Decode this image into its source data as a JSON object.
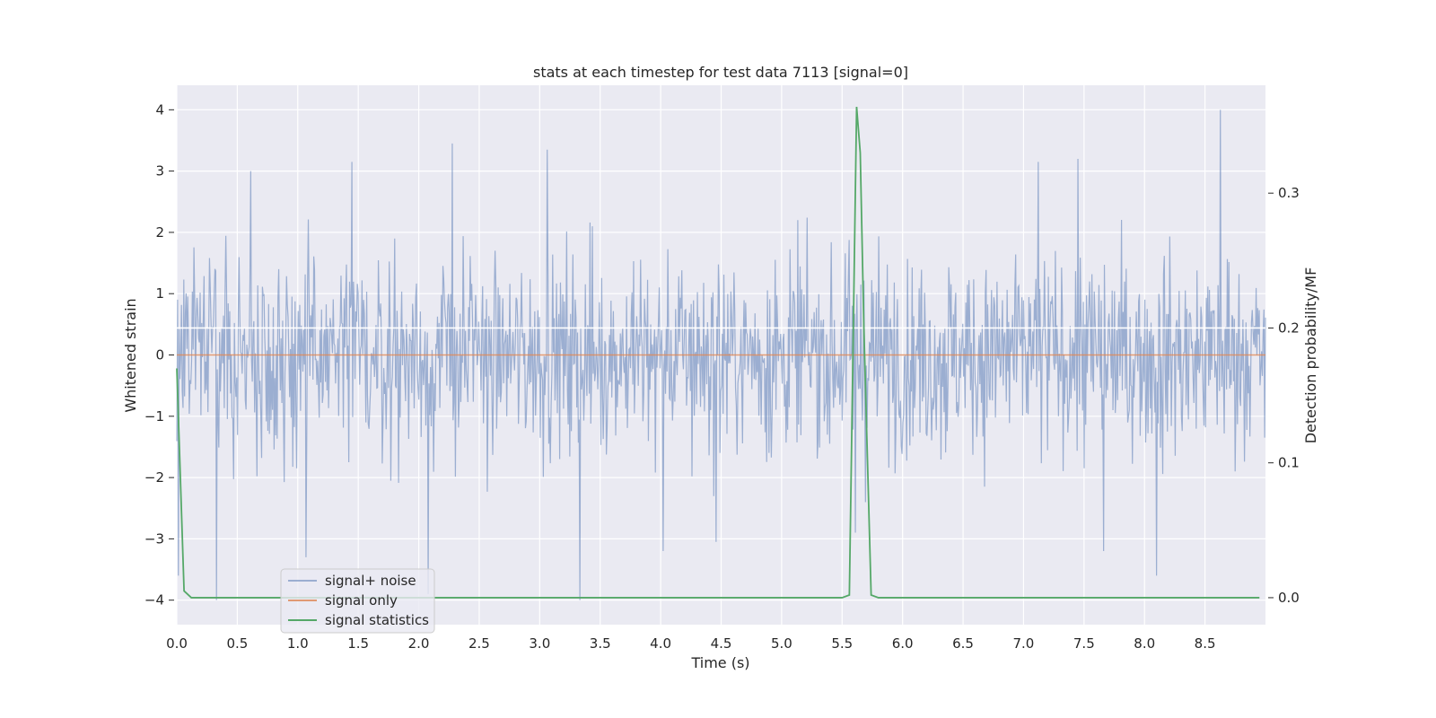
{
  "chart_data": {
    "type": "line",
    "title": "stats at each timestep for test data 7113 [signal=0]",
    "xlabel": "Time (s)",
    "ylabel": "Whitened strain",
    "ylabel_right": "Detection probability/MF",
    "xlim": [
      0.0,
      9.0
    ],
    "ylim": [
      -4.4,
      4.4
    ],
    "ylim_right": [
      -0.02,
      0.38
    ],
    "x_ticks": [
      "0.0",
      "0.5",
      "1.0",
      "1.5",
      "2.0",
      "2.5",
      "3.0",
      "3.5",
      "4.0",
      "4.5",
      "5.0",
      "5.5",
      "6.0",
      "6.5",
      "7.0",
      "7.5",
      "8.0",
      "8.5"
    ],
    "y_ticks": [
      "4",
      "3",
      "2",
      "1",
      "0",
      "−1",
      "−2",
      "−3",
      "−4"
    ],
    "y_ticks_right": [
      "0.3",
      "0.2",
      "0.1",
      "0.0"
    ],
    "grid": true,
    "legend_position": "lower-left",
    "series": [
      {
        "name": "signal+ noise",
        "axis": "left",
        "color": "#4c72b0",
        "style": "dense noise, amplitude mostly within ±2.5 with spikes reaching about ±4",
        "peaks": [
          {
            "x": 0.01,
            "y": -3.6
          },
          {
            "x": 0.33,
            "y": -4.0
          },
          {
            "x": 0.61,
            "y": 3.0
          },
          {
            "x": 1.07,
            "y": -3.3
          },
          {
            "x": 1.45,
            "y": 3.15
          },
          {
            "x": 2.08,
            "y": -3.9
          },
          {
            "x": 2.28,
            "y": 3.45
          },
          {
            "x": 3.06,
            "y": 3.35
          },
          {
            "x": 3.33,
            "y": -4.0
          },
          {
            "x": 4.02,
            "y": -3.2
          },
          {
            "x": 4.46,
            "y": -3.05
          },
          {
            "x": 5.61,
            "y": -2.9
          },
          {
            "x": 7.12,
            "y": 3.15
          },
          {
            "x": 7.45,
            "y": 3.2
          },
          {
            "x": 7.66,
            "y": -3.2
          },
          {
            "x": 8.1,
            "y": -3.6
          },
          {
            "x": 8.63,
            "y": 4.0
          }
        ]
      },
      {
        "name": "signal only",
        "axis": "left",
        "color": "#dd8452",
        "x": [
          0.0,
          9.0
        ],
        "y": [
          0.0,
          0.0
        ]
      },
      {
        "name": "signal statistics",
        "axis": "right",
        "color": "#55a868",
        "x": [
          0.0,
          0.06,
          0.12,
          5.5,
          5.56,
          5.62,
          5.65,
          5.68,
          5.74,
          5.8,
          9.0
        ],
        "y": [
          0.17,
          0.005,
          0.0,
          0.0,
          0.002,
          0.364,
          0.33,
          0.2,
          0.002,
          0.0,
          0.0
        ]
      }
    ],
    "white_horizontal_line_right": 0.2
  }
}
